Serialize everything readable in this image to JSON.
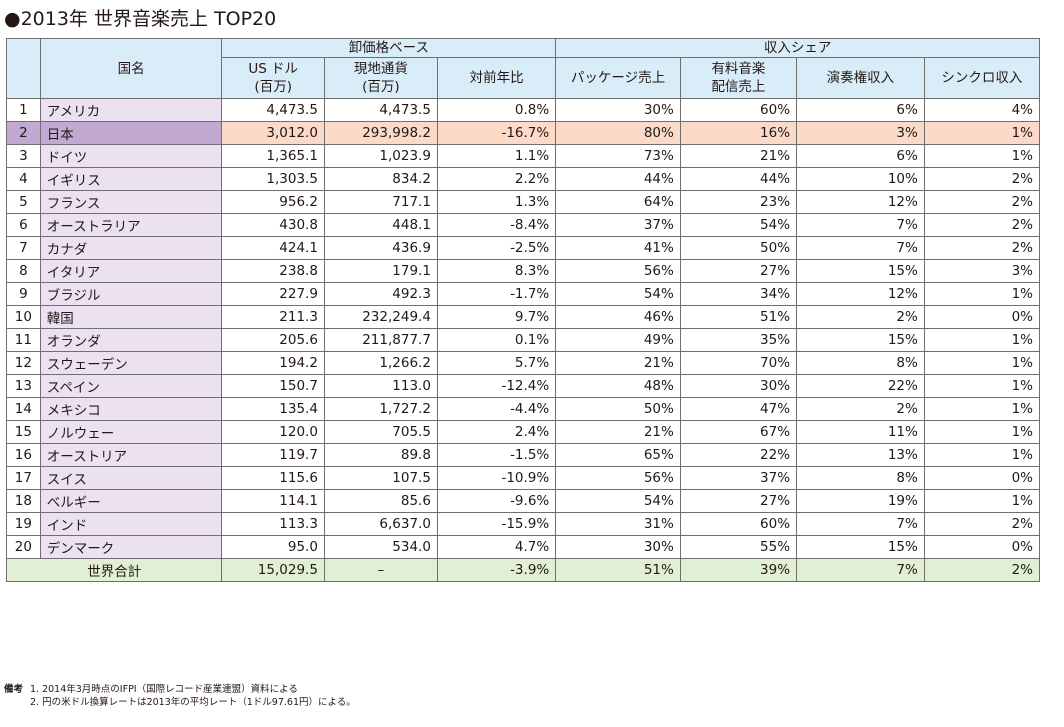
{
  "title": "●2013年 世界音楽売上 TOP20",
  "table": {
    "header": {
      "country": "国名",
      "group_wholesale": "卸価格ベース",
      "group_share": "収入シェア",
      "columns": [
        "US ドル\n(百万)",
        "現地通貨\n(百万)",
        "対前年比",
        "パッケージ売上",
        "有料音楽\n配信売上",
        "演奏権収入",
        "シンクロ収入"
      ]
    },
    "rows": [
      {
        "rank": "1",
        "name": "アメリカ",
        "values": [
          "4,473.5",
          "4,473.5",
          "0.8%",
          "30%",
          "60%",
          "6%",
          "4%"
        ]
      },
      {
        "rank": "2",
        "name": "日本",
        "values": [
          "3,012.0",
          "293,998.2",
          "-16.7%",
          "80%",
          "16%",
          "3%",
          "1%"
        ]
      },
      {
        "rank": "3",
        "name": "ドイツ",
        "values": [
          "1,365.1",
          "1,023.9",
          "1.1%",
          "73%",
          "21%",
          "6%",
          "1%"
        ]
      },
      {
        "rank": "4",
        "name": "イギリス",
        "values": [
          "1,303.5",
          "834.2",
          "2.2%",
          "44%",
          "44%",
          "10%",
          "2%"
        ]
      },
      {
        "rank": "5",
        "name": "フランス",
        "values": [
          "956.2",
          "717.1",
          "1.3%",
          "64%",
          "23%",
          "12%",
          "2%"
        ]
      },
      {
        "rank": "6",
        "name": "オーストラリア",
        "values": [
          "430.8",
          "448.1",
          "-8.4%",
          "37%",
          "54%",
          "7%",
          "2%"
        ]
      },
      {
        "rank": "7",
        "name": "カナダ",
        "values": [
          "424.1",
          "436.9",
          "-2.5%",
          "41%",
          "50%",
          "7%",
          "2%"
        ]
      },
      {
        "rank": "8",
        "name": "イタリア",
        "values": [
          "238.8",
          "179.1",
          "8.3%",
          "56%",
          "27%",
          "15%",
          "3%"
        ]
      },
      {
        "rank": "9",
        "name": "ブラジル",
        "values": [
          "227.9",
          "492.3",
          "-1.7%",
          "54%",
          "34%",
          "12%",
          "1%"
        ]
      },
      {
        "rank": "10",
        "name": "韓国",
        "values": [
          "211.3",
          "232,249.4",
          "9.7%",
          "46%",
          "51%",
          "2%",
          "0%"
        ]
      },
      {
        "rank": "11",
        "name": "オランダ",
        "values": [
          "205.6",
          "211,877.7",
          "0.1%",
          "49%",
          "35%",
          "15%",
          "1%"
        ]
      },
      {
        "rank": "12",
        "name": "スウェーデン",
        "values": [
          "194.2",
          "1,266.2",
          "5.7%",
          "21%",
          "70%",
          "8%",
          "1%"
        ]
      },
      {
        "rank": "13",
        "name": "スペイン",
        "values": [
          "150.7",
          "113.0",
          "-12.4%",
          "48%",
          "30%",
          "22%",
          "1%"
        ]
      },
      {
        "rank": "14",
        "name": "メキシコ",
        "values": [
          "135.4",
          "1,727.2",
          "-4.4%",
          "50%",
          "47%",
          "2%",
          "1%"
        ]
      },
      {
        "rank": "15",
        "name": "ノルウェー",
        "values": [
          "120.0",
          "705.5",
          "2.4%",
          "21%",
          "67%",
          "11%",
          "1%"
        ]
      },
      {
        "rank": "16",
        "name": "オーストリア",
        "values": [
          "119.7",
          "89.8",
          "-1.5%",
          "65%",
          "22%",
          "13%",
          "1%"
        ]
      },
      {
        "rank": "17",
        "name": "スイス",
        "values": [
          "115.6",
          "107.5",
          "-10.9%",
          "56%",
          "37%",
          "8%",
          "0%"
        ]
      },
      {
        "rank": "18",
        "name": "ベルギー",
        "values": [
          "114.1",
          "85.6",
          "-9.6%",
          "54%",
          "27%",
          "19%",
          "1%"
        ]
      },
      {
        "rank": "19",
        "name": "インド",
        "values": [
          "113.3",
          "6,637.0",
          "-15.9%",
          "31%",
          "60%",
          "7%",
          "2%"
        ]
      },
      {
        "rank": "20",
        "name": "デンマーク",
        "values": [
          "95.0",
          "534.0",
          "4.7%",
          "30%",
          "55%",
          "15%",
          "0%"
        ]
      }
    ],
    "total": {
      "label": "世界合計",
      "values": [
        "15,029.5",
        "–",
        "-3.9%",
        "51%",
        "39%",
        "7%",
        "2%"
      ]
    },
    "highlight_rank": "2"
  },
  "notes": {
    "label": "備考",
    "lines": [
      "1. 2014年3月時点のIFPI（国際レコード産業連盟）資料による",
      "2. 円の米ドル換算レートは2013年の平均レート（1ドル97.61円）による。"
    ]
  },
  "colors": {
    "header_bg": "#d9edf9",
    "name_bg": "#ebe1f1",
    "highlight_name_bg": "#c1a9d1",
    "highlight_row_bg": "#fbdbc8",
    "total_bg": "#e1efd4",
    "border": "#6f6f6f"
  }
}
